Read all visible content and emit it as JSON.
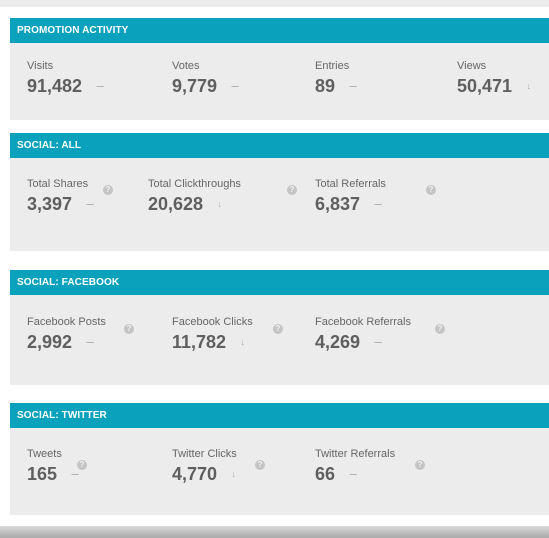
{
  "panels": [
    {
      "title": "PROMOTION ACTIVITY",
      "stats": [
        {
          "label": "Visits",
          "value": "91,482",
          "trend": "flat"
        },
        {
          "label": "Votes",
          "value": "9,779",
          "trend": "flat"
        },
        {
          "label": "Entries",
          "value": "89",
          "trend": "flat"
        },
        {
          "label": "Views",
          "value": "50,471",
          "trend": "down"
        }
      ]
    },
    {
      "title": "SOCIAL: ALL",
      "stats": [
        {
          "label": "Total Shares",
          "value": "3,397",
          "trend": "flat"
        },
        {
          "label": "Total Clickthroughs",
          "value": "20,628",
          "trend": "down"
        },
        {
          "label": "Total Referrals",
          "value": "6,837",
          "trend": "flat"
        }
      ]
    },
    {
      "title": "SOCIAL: FACEBOOK",
      "stats": [
        {
          "label": "Facebook Posts",
          "value": "2,992",
          "trend": "flat"
        },
        {
          "label": "Facebook Clicks",
          "value": "11,782",
          "trend": "down"
        },
        {
          "label": "Facebook Referrals",
          "value": "4,269",
          "trend": "flat"
        }
      ]
    },
    {
      "title": "SOCIAL: TWITTER",
      "stats": [
        {
          "label": "Tweets",
          "value": "165",
          "trend": "flat"
        },
        {
          "label": "Twitter Clicks",
          "value": "4,770",
          "trend": "down"
        },
        {
          "label": "Twitter Referrals",
          "value": "66",
          "trend": "flat"
        }
      ]
    }
  ],
  "icons": {
    "flat": "–",
    "down": "↓",
    "help": "?"
  },
  "colors": {
    "header": "#0aa1bd",
    "panel": "#ececec",
    "value": "#5f5f5f"
  }
}
